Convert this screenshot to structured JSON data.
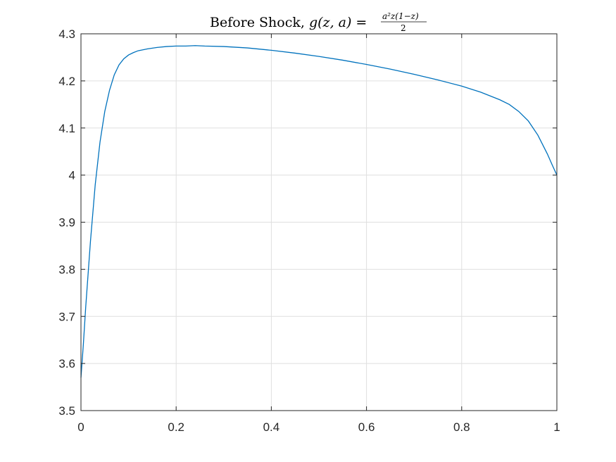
{
  "chart_data": {
    "type": "line",
    "title": {
      "prefix": "Before Shock, ",
      "function": "g(z, a) = ",
      "numerator": "a²z(1−z)",
      "denominator": "2"
    },
    "xlabel": "",
    "ylabel": "",
    "xlim": [
      0,
      1
    ],
    "ylim": [
      3.5,
      4.3
    ],
    "x_ticks": [
      0,
      0.2,
      0.4,
      0.6,
      0.8,
      1
    ],
    "x_tick_labels": [
      "0",
      "0.2",
      "0.4",
      "0.6",
      "0.8",
      "1"
    ],
    "y_ticks": [
      3.5,
      3.6,
      3.7,
      3.8,
      3.9,
      4.0,
      4.1,
      4.2,
      4.3
    ],
    "y_tick_labels": [
      "3.5",
      "3.6",
      "3.7",
      "3.8",
      "3.9",
      "4",
      "4.1",
      "4.2",
      "4.3"
    ],
    "grid": true,
    "line_color": "#0072BD",
    "grid_color": "#dfdfdf",
    "axis_color": "#262626",
    "series": [
      {
        "x": [
          0,
          0.005,
          0.01,
          0.02,
          0.03,
          0.04,
          0.05,
          0.06,
          0.07,
          0.08,
          0.09,
          0.1,
          0.11,
          0.12,
          0.14,
          0.16,
          0.18,
          0.2,
          0.22,
          0.24,
          0.26,
          0.3,
          0.35,
          0.4,
          0.45,
          0.5,
          0.55,
          0.6,
          0.65,
          0.7,
          0.75,
          0.8,
          0.84,
          0.88,
          0.9,
          0.92,
          0.94,
          0.95,
          0.96,
          0.97,
          0.98,
          0.99,
          1
        ],
        "y": [
          3.57,
          3.64,
          3.72,
          3.86,
          3.98,
          4.07,
          4.135,
          4.18,
          4.213,
          4.234,
          4.247,
          4.255,
          4.26,
          4.264,
          4.268,
          4.271,
          4.273,
          4.274,
          4.274,
          4.275,
          4.274,
          4.273,
          4.27,
          4.265,
          4.259,
          4.252,
          4.244,
          4.235,
          4.225,
          4.214,
          4.202,
          4.189,
          4.176,
          4.16,
          4.15,
          4.135,
          4.115,
          4.1,
          4.085,
          4.065,
          4.045,
          4.022,
          4.0
        ]
      }
    ]
  }
}
